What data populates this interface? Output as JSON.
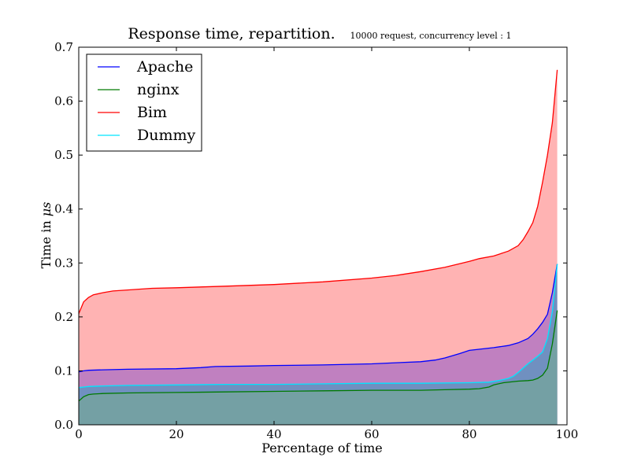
{
  "chart_data": {
    "type": "area",
    "title": "Response time, repartition.",
    "subtitle": "10000 request, concurrency level : 1",
    "xlabel": "Percentage of time",
    "ylabel": "Time in ",
    "ylabel_unit": "μs",
    "xlim": [
      0,
      100
    ],
    "ylim": [
      0,
      0.7
    ],
    "xticks": [
      0,
      20,
      40,
      60,
      80,
      100
    ],
    "xtick_labels": [
      "0",
      "20",
      "40",
      "60",
      "80",
      "100"
    ],
    "yticks": [
      0.0,
      0.1,
      0.2,
      0.3,
      0.4,
      0.5,
      0.6,
      0.7
    ],
    "ytick_labels": [
      "0.0",
      "0.1",
      "0.2",
      "0.3",
      "0.4",
      "0.5",
      "0.6",
      "0.7"
    ],
    "grid": false,
    "legend_position": "top-left",
    "series": [
      {
        "name": "Bim",
        "color": "#ff0000",
        "fill": "#ffb3b3",
        "x": [
          0,
          1,
          2,
          3,
          5,
          7,
          10,
          15,
          20,
          30,
          40,
          50,
          60,
          65,
          70,
          75,
          80,
          82,
          85,
          88,
          90,
          91,
          92,
          93,
          94,
          95,
          96,
          97,
          98
        ],
        "y": [
          0.206,
          0.228,
          0.236,
          0.241,
          0.245,
          0.248,
          0.25,
          0.253,
          0.254,
          0.257,
          0.26,
          0.265,
          0.272,
          0.277,
          0.284,
          0.292,
          0.303,
          0.308,
          0.313,
          0.322,
          0.332,
          0.343,
          0.358,
          0.375,
          0.405,
          0.45,
          0.5,
          0.56,
          0.658
        ]
      },
      {
        "name": "Apache",
        "color": "#0000ff",
        "fill": "#c080c0",
        "x": [
          0,
          1,
          2,
          5,
          10,
          20,
          25,
          28,
          35,
          40,
          50,
          60,
          65,
          70,
          73,
          75,
          78,
          80,
          85,
          88,
          90,
          92,
          93,
          94,
          95,
          96,
          97,
          98
        ],
        "y": [
          0.098,
          0.1,
          0.101,
          0.102,
          0.103,
          0.104,
          0.106,
          0.108,
          0.109,
          0.11,
          0.111,
          0.113,
          0.115,
          0.117,
          0.12,
          0.124,
          0.132,
          0.138,
          0.143,
          0.147,
          0.152,
          0.16,
          0.168,
          0.178,
          0.19,
          0.205,
          0.245,
          0.298
        ]
      },
      {
        "name": "Dummy",
        "color": "#00e5ff",
        "fill": "#7090c0",
        "x": [
          0,
          1,
          2,
          5,
          10,
          20,
          30,
          40,
          50,
          60,
          70,
          80,
          84,
          86,
          88,
          89,
          90,
          91,
          92,
          93,
          94,
          95,
          96,
          97,
          98
        ],
        "y": [
          0.069,
          0.07,
          0.071,
          0.072,
          0.073,
          0.074,
          0.075,
          0.075,
          0.076,
          0.077,
          0.077,
          0.078,
          0.079,
          0.082,
          0.086,
          0.09,
          0.097,
          0.105,
          0.113,
          0.12,
          0.127,
          0.135,
          0.16,
          0.21,
          0.298
        ]
      },
      {
        "name": "nginx",
        "color": "#007a00",
        "fill": "#74a0a4",
        "x": [
          0,
          1,
          2,
          3,
          5,
          10,
          20,
          30,
          40,
          50,
          60,
          70,
          75,
          80,
          82,
          84,
          85,
          87,
          90,
          92,
          93,
          94,
          95,
          96,
          97,
          98
        ],
        "y": [
          0.044,
          0.052,
          0.056,
          0.057,
          0.058,
          0.059,
          0.06,
          0.061,
          0.062,
          0.063,
          0.064,
          0.064,
          0.065,
          0.066,
          0.067,
          0.07,
          0.074,
          0.078,
          0.081,
          0.082,
          0.083,
          0.086,
          0.092,
          0.105,
          0.15,
          0.212
        ]
      }
    ],
    "legend_order": [
      "Apache",
      "nginx",
      "Bim",
      "Dummy"
    ]
  }
}
